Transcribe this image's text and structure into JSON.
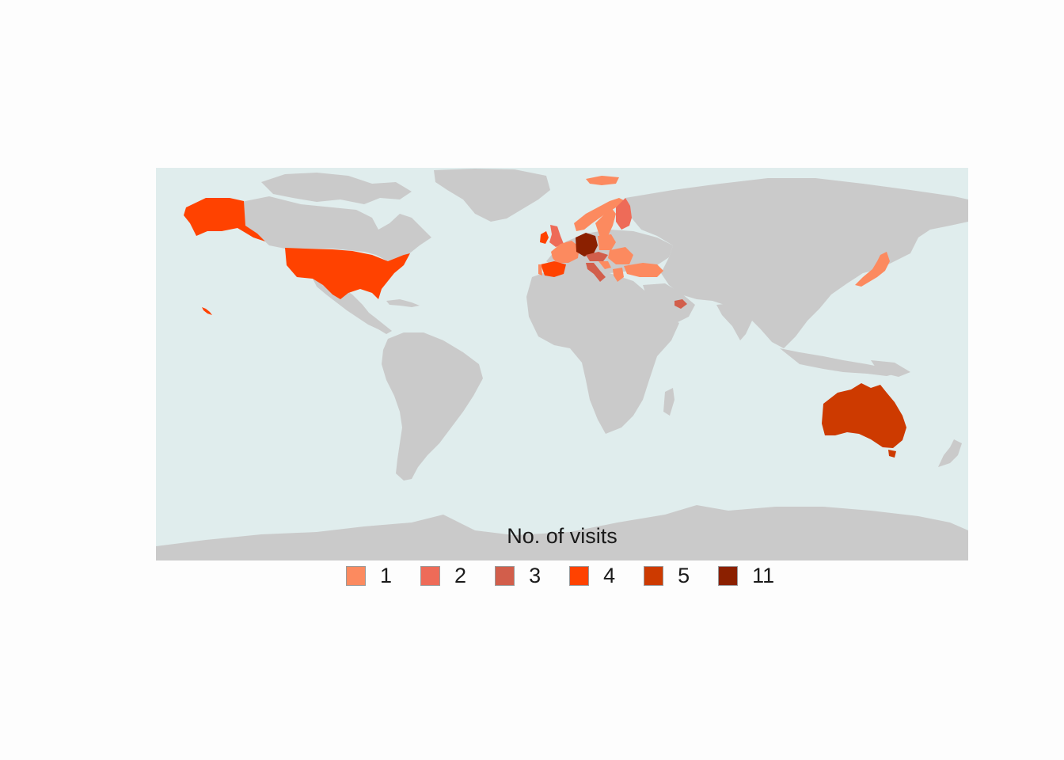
{
  "legend": {
    "title": "No. of visits",
    "items": [
      {
        "label": "1",
        "color": "#FC8A5F"
      },
      {
        "label": "2",
        "color": "#EE6B58"
      },
      {
        "label": "3",
        "color": "#D25E4B"
      },
      {
        "label": "4",
        "color": "#FF4200"
      },
      {
        "label": "5",
        "color": "#CD3A00"
      },
      {
        "label": "11",
        "color": "#8B2000"
      }
    ]
  },
  "colors": {
    "ocean": "#E0EDED",
    "land": "#CACACA",
    "background": "#FDFDFD"
  },
  "visited_countries": [
    {
      "name": "Germany",
      "visits": 11
    },
    {
      "name": "Australia",
      "visits": 5
    },
    {
      "name": "United States",
      "visits": 4
    },
    {
      "name": "Spain",
      "visits": 4
    },
    {
      "name": "Ireland",
      "visits": 4
    },
    {
      "name": "Italy",
      "visits": 3
    },
    {
      "name": "Austria",
      "visits": 3
    },
    {
      "name": "United Arab Emirates",
      "visits": 3
    },
    {
      "name": "Finland",
      "visits": 2
    },
    {
      "name": "United Kingdom",
      "visits": 2
    },
    {
      "name": "Norway",
      "visits": 1
    },
    {
      "name": "Sweden",
      "visits": 1
    },
    {
      "name": "France",
      "visits": 1
    },
    {
      "name": "Poland",
      "visits": 1
    },
    {
      "name": "Turkey",
      "visits": 1
    },
    {
      "name": "Japan",
      "visits": 1
    },
    {
      "name": "Greece",
      "visits": 1
    },
    {
      "name": "Croatia",
      "visits": 1
    }
  ]
}
